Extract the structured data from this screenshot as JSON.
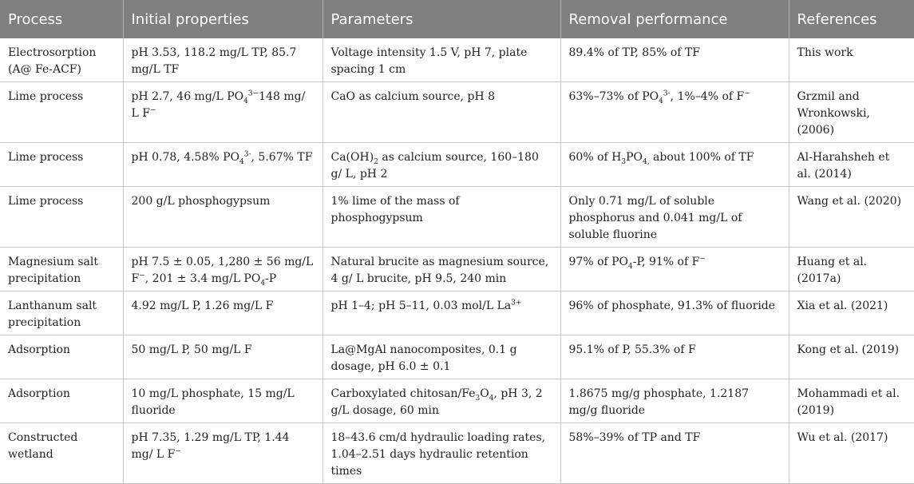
{
  "table": {
    "headers": [
      "Process",
      "Initial properties",
      "Parameters",
      "Removal performance",
      "References"
    ],
    "rows": [
      {
        "process": "Electrosorption (A@ Fe-ACF)",
        "initial": "pH 3.53, 118.2 mg/L TP, 85.7 mg/L TF",
        "parameters": "Voltage intensity 1.5 V, pH 7, plate spacing 1 cm",
        "removal": "89.4% of TP, 85% of TF",
        "reference": "This work"
      },
      {
        "process": "Lime process",
        "initial": "pH 2.7, 46 mg/L PO<sub>4</sub><sup>3−</sup>148 mg/ L F<sup>−</sup>",
        "parameters": "CaO as calcium source, pH 8",
        "removal": "63%–73% of PO<sub>4</sub><sup>3-</sup>, 1%–4% of F<sup>−</sup>",
        "reference": "Grzmil and Wronkowski, (2006)"
      },
      {
        "process": "Lime process",
        "initial": "pH 0.78, 4.58% PO<sub>4</sub><sup>3-</sup>, 5.67% TF",
        "parameters": "Ca(OH)<sub>2</sub> as calcium source, 160–180 g/ L, pH 2",
        "removal": "60% of H<sub>3</sub>PO<sub>4,</sub> about 100% of TF",
        "reference": "Al-Harahsheh et al. (2014)"
      },
      {
        "process": "Lime process",
        "initial": "200 g/L phosphogypsum",
        "parameters": "1% lime of the mass of phosphogypsum",
        "removal": "Only 0.71 mg/L of soluble phosphorus and 0.041 mg/L of soluble fluorine",
        "reference": "Wang et al. (2020)"
      },
      {
        "process": "Magnesium salt precipitation",
        "initial": "pH 7.5 ± 0.05, 1,280 ± 56 mg/L F<sup>−</sup>, 201 ± 3.4 mg/L PO<sub>4</sub>-P",
        "parameters": "Natural brucite as magnesium source, 4 g/ L brucite, pH 9.5, 240 min",
        "removal": "97% of PO<sub>4</sub>-P, 91% of F<sup>−</sup>",
        "reference": "Huang et al. (2017a)"
      },
      {
        "process": "Lanthanum salt precipitation",
        "initial": "4.92 mg/L P, 1.26 mg/L F",
        "parameters": "pH 1–4; pH 5–11, 0.03 mol/L La<sup>3+</sup>",
        "removal": "96% of phosphate, 91.3% of fluoride",
        "reference": "Xia et al. (2021)"
      },
      {
        "process": "Adsorption",
        "initial": "50 mg/L P, 50 mg/L F",
        "parameters": "La@MgAl nanocomposites, 0.1 g dosage, pH 6.0 ± 0.1",
        "removal": "95.1% of P, 55.3% of F",
        "reference": "Kong et al. (2019)"
      },
      {
        "process": "Adsorption",
        "initial": "10 mg/L phosphate, 15 mg/L fluoride",
        "parameters": "Carboxylated chitosan/Fe<sub>3</sub>O<sub>4</sub>, pH 3, 2 g/L dosage, 60 min",
        "removal": "1.8675 mg/g phosphate, 1.2187 mg/g fluoride",
        "reference": "Mohammadi et al. (2019)"
      },
      {
        "process": "Constructed wetland",
        "initial": "pH 7.35, 1.29 mg/L TP, 1.44 mg/ L F<sup>−</sup>",
        "parameters": "18–43.6 cm/d hydraulic loading rates, 1.04–2.51 days hydraulic retention times",
        "removal": "58%–39% of TP and TF",
        "reference": "Wu et al. (2017)"
      }
    ]
  }
}
